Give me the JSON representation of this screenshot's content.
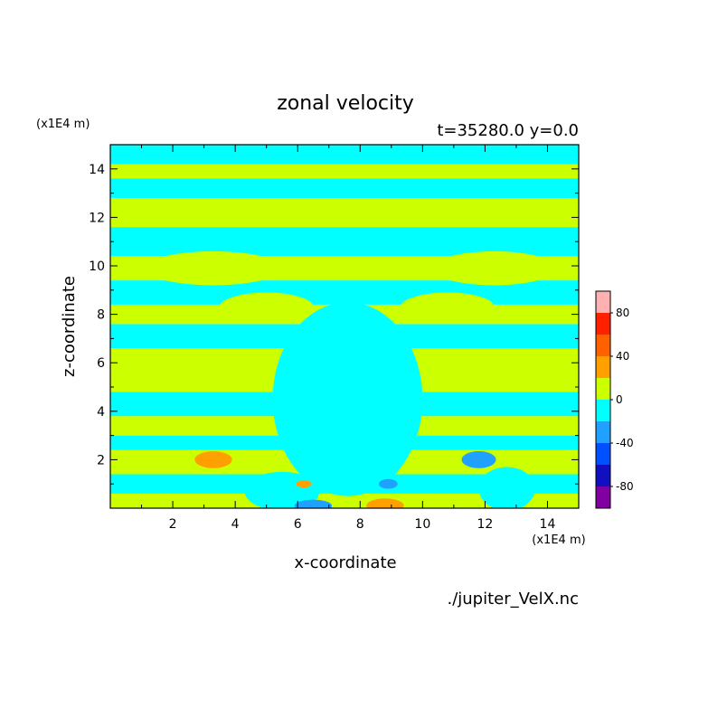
{
  "chart_data": {
    "type": "heatmap",
    "title": "zonal velocity",
    "subtitle": "t=35280.0 y=0.0",
    "xlabel": "x-coordinate",
    "ylabel": "z-coordinate",
    "x_unit": "(x1E4 m)",
    "y_unit": "(x1E4 m)",
    "xlim": [
      0,
      15
    ],
    "ylim": [
      0,
      15
    ],
    "x_ticks": [
      2,
      4,
      6,
      8,
      10,
      12,
      14
    ],
    "y_ticks": [
      2,
      4,
      6,
      8,
      10,
      12,
      14
    ],
    "source_label": "./jupiter_VelX.nc",
    "colorbar": {
      "levels": [
        -100,
        -80,
        -60,
        -40,
        -20,
        0,
        20,
        40,
        60,
        80,
        100
      ],
      "tick_labels": [
        -80,
        -40,
        0,
        40,
        80
      ],
      "colors": [
        "#8000a0",
        "#1010c0",
        "#0050ff",
        "#20a0ff",
        "#00ffff",
        "#ccff00",
        "#ffa000",
        "#ff6000",
        "#ff2000",
        "#ffb0b0"
      ]
    },
    "background_band_levels": [
      0,
      -20
    ],
    "bands": [
      {
        "z0": 0.0,
        "z1": 0.6,
        "value": 10
      },
      {
        "z0": 0.6,
        "z1": 1.4,
        "value": -10
      },
      {
        "z0": 1.4,
        "z1": 2.4,
        "value": 10
      },
      {
        "z0": 2.4,
        "z1": 3.0,
        "value": -10
      },
      {
        "z0": 3.0,
        "z1": 3.8,
        "value": 10
      },
      {
        "z0": 3.8,
        "z1": 4.8,
        "value": -10
      },
      {
        "z0": 4.8,
        "z1": 6.6,
        "value": 10
      },
      {
        "z0": 6.6,
        "z1": 7.6,
        "value": -10
      },
      {
        "z0": 7.6,
        "z1": 8.4,
        "value": 10
      },
      {
        "z0": 8.4,
        "z1": 9.4,
        "value": -10
      },
      {
        "z0": 9.4,
        "z1": 10.4,
        "value": 10
      },
      {
        "z0": 10.4,
        "z1": 11.6,
        "value": -10
      },
      {
        "z0": 11.6,
        "z1": 12.8,
        "value": 10
      },
      {
        "z0": 12.8,
        "z1": 13.6,
        "value": -10
      },
      {
        "z0": 13.6,
        "z1": 14.2,
        "value": 10
      },
      {
        "z0": 14.2,
        "z1": 15.0,
        "value": -10
      }
    ],
    "features": [
      {
        "cx": 7.6,
        "cz": 4.5,
        "rx": 2.4,
        "rz": 4.0,
        "value": -10
      },
      {
        "cx": 5.5,
        "cz": 0.7,
        "rx": 1.2,
        "rz": 0.8,
        "value": -10
      },
      {
        "cx": 12.7,
        "cz": 0.8,
        "rx": 0.9,
        "rz": 0.9,
        "value": -10
      },
      {
        "cx": 3.3,
        "cz": 9.9,
        "rx": 2.2,
        "rz": 0.7,
        "value": 10
      },
      {
        "cx": 12.3,
        "cz": 9.9,
        "rx": 2.0,
        "rz": 0.7,
        "value": 10
      },
      {
        "cx": 5.0,
        "cz": 8.3,
        "rx": 1.5,
        "rz": 0.6,
        "value": 10
      },
      {
        "cx": 10.8,
        "cz": 8.3,
        "rx": 1.5,
        "rz": 0.6,
        "value": 10
      },
      {
        "cx": 3.3,
        "cz": 2.0,
        "rx": 0.6,
        "rz": 0.35,
        "value": 30
      },
      {
        "cx": 6.2,
        "cz": 1.0,
        "rx": 0.25,
        "rz": 0.15,
        "value": 30
      },
      {
        "cx": 8.8,
        "cz": 0.1,
        "rx": 0.6,
        "rz": 0.3,
        "value": 30
      },
      {
        "cx": 11.8,
        "cz": 2.0,
        "rx": 0.55,
        "rz": 0.35,
        "value": -30
      },
      {
        "cx": 8.9,
        "cz": 1.0,
        "rx": 0.3,
        "rz": 0.2,
        "value": -30
      },
      {
        "cx": 6.5,
        "cz": 0.1,
        "rx": 0.6,
        "rz": 0.25,
        "value": -30
      }
    ]
  }
}
